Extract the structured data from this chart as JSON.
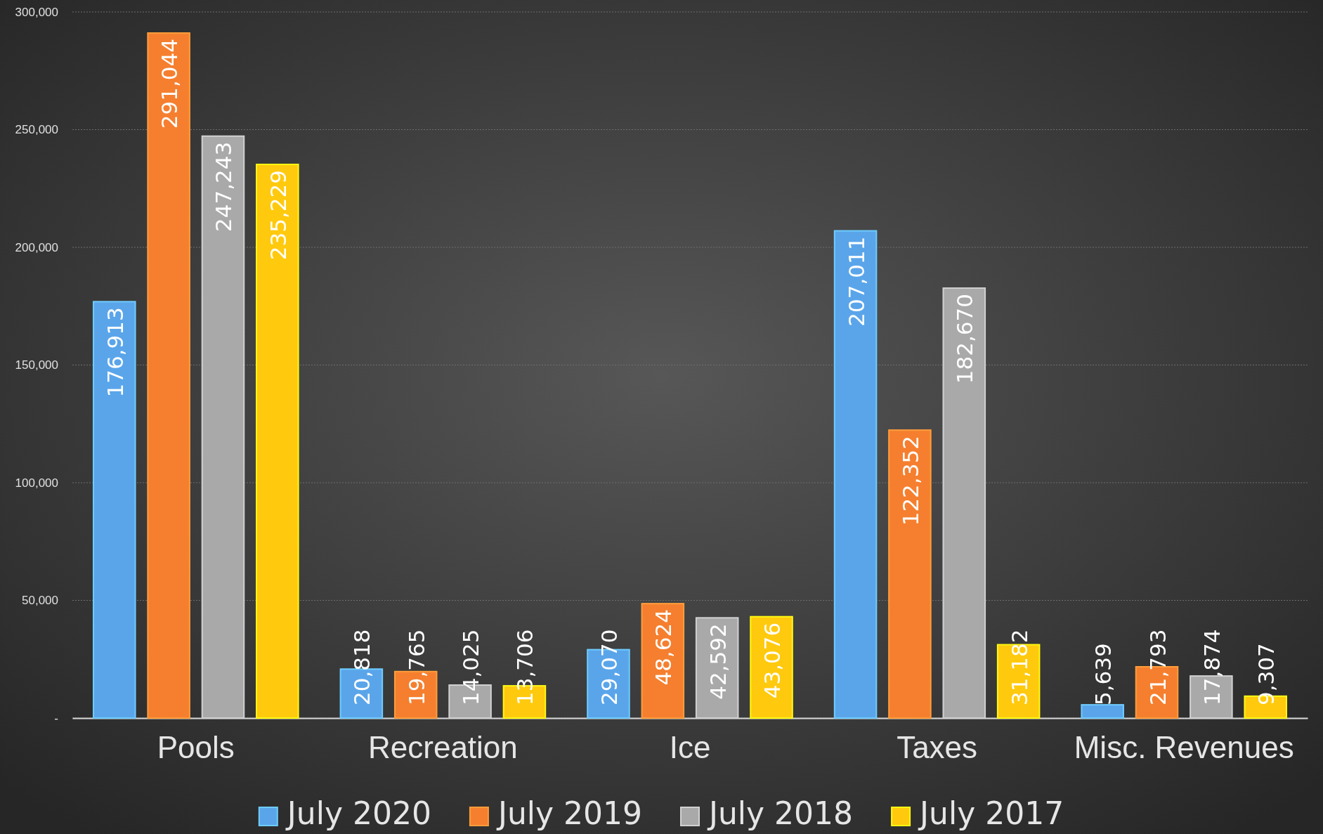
{
  "chart_data": {
    "type": "bar",
    "categories": [
      "Pools",
      "Recreation",
      "Ice",
      "Taxes",
      "Misc. Revenues"
    ],
    "series": [
      {
        "name": "July 2020",
        "color": "#5aa5ea",
        "values": [
          176913,
          20818,
          29070,
          207011,
          5639
        ],
        "value_labels": [
          "176,913",
          "20,818",
          "29,070",
          "207,011",
          "5,639"
        ]
      },
      {
        "name": "July 2019",
        "color": "#f57f2f",
        "values": [
          291044,
          19765,
          48624,
          122352,
          21793
        ],
        "value_labels": [
          "291,044",
          "19,765",
          "48,624",
          "122,352",
          "21,793"
        ]
      },
      {
        "name": "July 2018",
        "color": "#a9a9a9",
        "values": [
          247243,
          14025,
          42592,
          182670,
          17874
        ],
        "value_labels": [
          "247,243",
          "14,025",
          "42,592",
          "182,670",
          "17,874"
        ]
      },
      {
        "name": "July 2017",
        "color": "#ffc90e",
        "values": [
          235229,
          13706,
          43076,
          31182,
          9307
        ],
        "value_labels": [
          "235,229",
          "13,706",
          "43,076",
          "31,182",
          "9,307"
        ]
      }
    ],
    "ylim": [
      0,
      300000
    ],
    "yticks": [
      {
        "value": 0,
        "label": "-"
      },
      {
        "value": 50000,
        "label": "50,000"
      },
      {
        "value": 100000,
        "label": "100,000"
      },
      {
        "value": 150000,
        "label": "150,000"
      },
      {
        "value": 200000,
        "label": "200,000"
      },
      {
        "value": 250000,
        "label": "250,000"
      },
      {
        "value": 300000,
        "label": "300,000"
      }
    ],
    "grid": "y",
    "legend": "bottom"
  }
}
